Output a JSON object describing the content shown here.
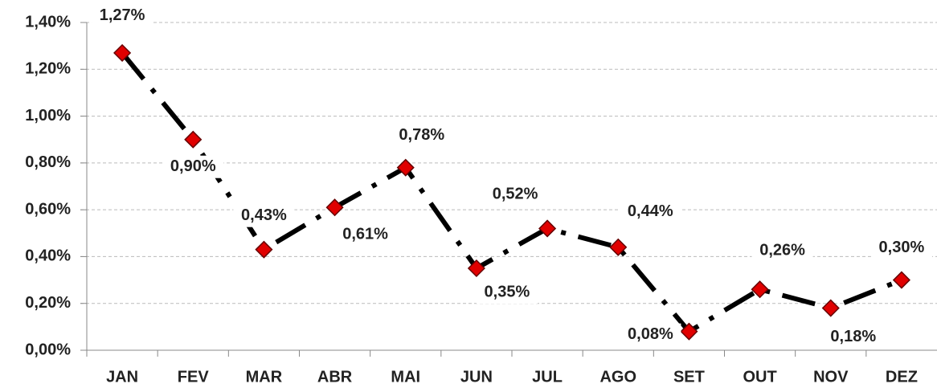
{
  "chart_data": {
    "type": "line",
    "categories": [
      "JAN",
      "FEV",
      "MAR",
      "ABR",
      "MAI",
      "JUN",
      "JUL",
      "AGO",
      "SET",
      "OUT",
      "NOV",
      "DEZ"
    ],
    "values": [
      1.27,
      0.9,
      0.43,
      0.61,
      0.78,
      0.35,
      0.52,
      0.44,
      0.08,
      0.26,
      0.18,
      0.3
    ],
    "value_labels": [
      "1,27%",
      "0,90%",
      "0,43%",
      "0,61%",
      "0,78%",
      "0,35%",
      "0,52%",
      "0,44%",
      "0,08%",
      "0,26%",
      "0,18%",
      "0,30%"
    ],
    "color": "#000000",
    "marker_color": "#e00000",
    "ylim": [
      0,
      1.4
    ],
    "yticks": [
      {
        "value": 0,
        "label": "0,00%"
      },
      {
        "value": 0.2,
        "label": "0,20%"
      },
      {
        "value": 0.4,
        "label": "0,40%"
      },
      {
        "value": 0.6,
        "label": "0,60%"
      },
      {
        "value": 0.8,
        "label": "0,80%"
      },
      {
        "value": 1.0,
        "label": "1,00%"
      },
      {
        "value": 1.2,
        "label": "1,20%"
      },
      {
        "value": 1.4,
        "label": "1,40%"
      }
    ],
    "grid": true
  }
}
